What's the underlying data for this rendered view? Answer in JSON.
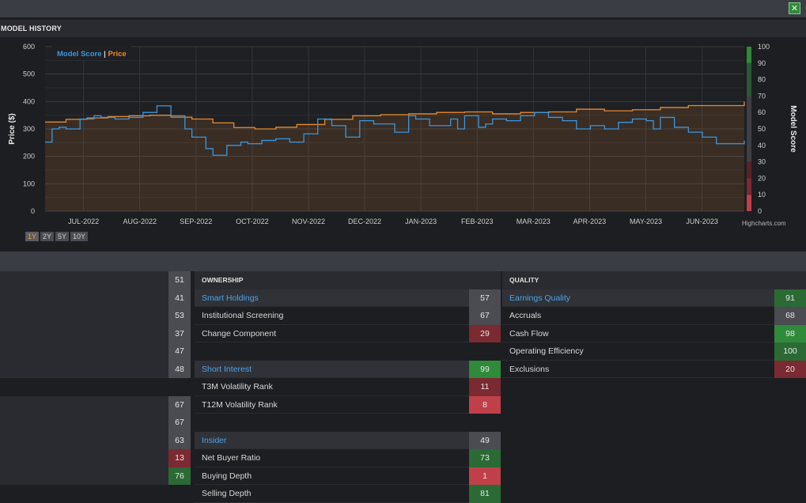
{
  "window": {
    "close_icon": "excel-close-icon",
    "close_glyph": "✕"
  },
  "model_history": {
    "title": "MODEL HISTORY",
    "legend": {
      "score_label": "Model Score",
      "separator": " | ",
      "price_label": "Price"
    },
    "credit": "Highcharts.com",
    "range_buttons": [
      "1Y",
      "2Y",
      "5Y",
      "10Y"
    ],
    "active_range": "1Y"
  },
  "chart_data": {
    "type": "line",
    "xlabel": "",
    "ylabel": "Price ($)",
    "y2label": "Model Score",
    "x_ticks": [
      "JUL-2022",
      "AUG-2022",
      "SEP-2022",
      "OCT-2022",
      "NOV-2022",
      "DEC-2022",
      "JAN-2023",
      "FEB-2023",
      "MAR-2023",
      "APR-2023",
      "MAY-2023",
      "JUN-2023"
    ],
    "ylim": [
      0,
      600
    ],
    "y_ticks": [
      0,
      100,
      200,
      300,
      400,
      500,
      600
    ],
    "y2lim": [
      0,
      100
    ],
    "y2_ticks": [
      0,
      10,
      20,
      30,
      40,
      50,
      60,
      70,
      80,
      90,
      100
    ],
    "grid": true,
    "legend_position": "top-left",
    "colors": {
      "score": "#3a97e0",
      "price": "#e88a2e",
      "background": "#1d1e21"
    },
    "series": [
      {
        "name": "Model Score",
        "axis": "right",
        "x": [
          0,
          0.01,
          0.02,
          0.03,
          0.05,
          0.07,
          0.08,
          0.1,
          0.12,
          0.14,
          0.16,
          0.18,
          0.2,
          0.21,
          0.23,
          0.24,
          0.26,
          0.28,
          0.29,
          0.31,
          0.33,
          0.35,
          0.37,
          0.39,
          0.41,
          0.43,
          0.45,
          0.47,
          0.5,
          0.52,
          0.53,
          0.55,
          0.56,
          0.58,
          0.59,
          0.6,
          0.62,
          0.63,
          0.64,
          0.66,
          0.68,
          0.7,
          0.72,
          0.74,
          0.76,
          0.78,
          0.8,
          0.82,
          0.84,
          0.86,
          0.87,
          0.88,
          0.9,
          0.92,
          0.94,
          0.96,
          1.0
        ],
        "y": [
          42,
          50,
          51,
          50,
          56,
          58,
          57,
          56,
          57,
          60,
          64,
          58,
          50,
          45,
          38,
          34,
          40,
          42,
          41,
          43,
          44,
          42,
          47,
          56,
          52,
          45,
          55,
          53,
          48,
          58,
          56,
          52,
          52,
          56,
          50,
          58,
          51,
          53,
          56,
          55,
          58,
          60,
          57,
          55,
          50,
          52,
          50,
          54,
          56,
          55,
          50,
          57,
          51,
          48,
          45,
          41,
          43
        ]
      },
      {
        "name": "Price",
        "axis": "left",
        "x": [
          0,
          0.03,
          0.06,
          0.09,
          0.12,
          0.15,
          0.18,
          0.21,
          0.24,
          0.27,
          0.3,
          0.33,
          0.36,
          0.4,
          0.44,
          0.48,
          0.52,
          0.56,
          0.6,
          0.64,
          0.68,
          0.72,
          0.76,
          0.8,
          0.84,
          0.88,
          0.92,
          0.96,
          1.0
        ],
        "y": [
          325,
          335,
          340,
          345,
          348,
          350,
          343,
          336,
          322,
          305,
          300,
          306,
          316,
          335,
          348,
          352,
          355,
          360,
          362,
          355,
          360,
          362,
          372,
          366,
          370,
          378,
          385,
          385,
          400
        ]
      }
    ]
  },
  "panels": {
    "left_values": [
      {
        "value": "51",
        "tone": "neutral"
      },
      {
        "value": "41",
        "tone": "neutral"
      },
      {
        "value": "53",
        "tone": "neutral"
      },
      {
        "value": "37",
        "tone": "neutral"
      },
      {
        "value": "47",
        "tone": "neutral"
      },
      {
        "value": "48",
        "tone": "neutral"
      },
      {
        "value": "",
        "tone": "blank"
      },
      {
        "value": "67",
        "tone": "neutral"
      },
      {
        "value": "67",
        "tone": "neutral"
      },
      {
        "value": "63",
        "tone": "neutral"
      },
      {
        "value": "13",
        "tone": "red"
      },
      {
        "value": "76",
        "tone": "green"
      }
    ],
    "ownership": {
      "header": "OWNERSHIP",
      "rows": [
        {
          "label": "Smart Holdings",
          "value": "57",
          "kind": "group",
          "tone": "neutral"
        },
        {
          "label": "Institutional Screening",
          "value": "67",
          "kind": "plain",
          "tone": "neutral"
        },
        {
          "label": "Change Component",
          "value": "29",
          "kind": "plain",
          "tone": "red"
        },
        {
          "label": "",
          "value": "",
          "kind": "blank",
          "tone": "blank"
        },
        {
          "label": "Short Interest",
          "value": "99",
          "kind": "group",
          "tone": "green2"
        },
        {
          "label": "T3M Volatility Rank",
          "value": "11",
          "kind": "plain",
          "tone": "red"
        },
        {
          "label": "T12M Volatility Rank",
          "value": "8",
          "kind": "plain",
          "tone": "redb"
        },
        {
          "label": "",
          "value": "",
          "kind": "blank",
          "tone": "blank"
        },
        {
          "label": "Insider",
          "value": "49",
          "kind": "group",
          "tone": "neutral"
        },
        {
          "label": "Net Buyer Ratio",
          "value": "73",
          "kind": "plain",
          "tone": "green"
        },
        {
          "label": "Buying Depth",
          "value": "1",
          "kind": "plain",
          "tone": "redb"
        },
        {
          "label": "Selling Depth",
          "value": "81",
          "kind": "plain",
          "tone": "green"
        }
      ]
    },
    "quality": {
      "header": "QUALITY",
      "rows": [
        {
          "label": "Earnings Quality",
          "value": "91",
          "kind": "group",
          "tone": "green"
        },
        {
          "label": "Accruals",
          "value": "68",
          "kind": "plain",
          "tone": "neutral"
        },
        {
          "label": "Cash Flow",
          "value": "98",
          "kind": "plain",
          "tone": "green2"
        },
        {
          "label": "Operating Efficiency",
          "value": "100",
          "kind": "plain",
          "tone": "green"
        },
        {
          "label": "Exclusions",
          "value": "20",
          "kind": "plain",
          "tone": "red"
        }
      ]
    }
  }
}
